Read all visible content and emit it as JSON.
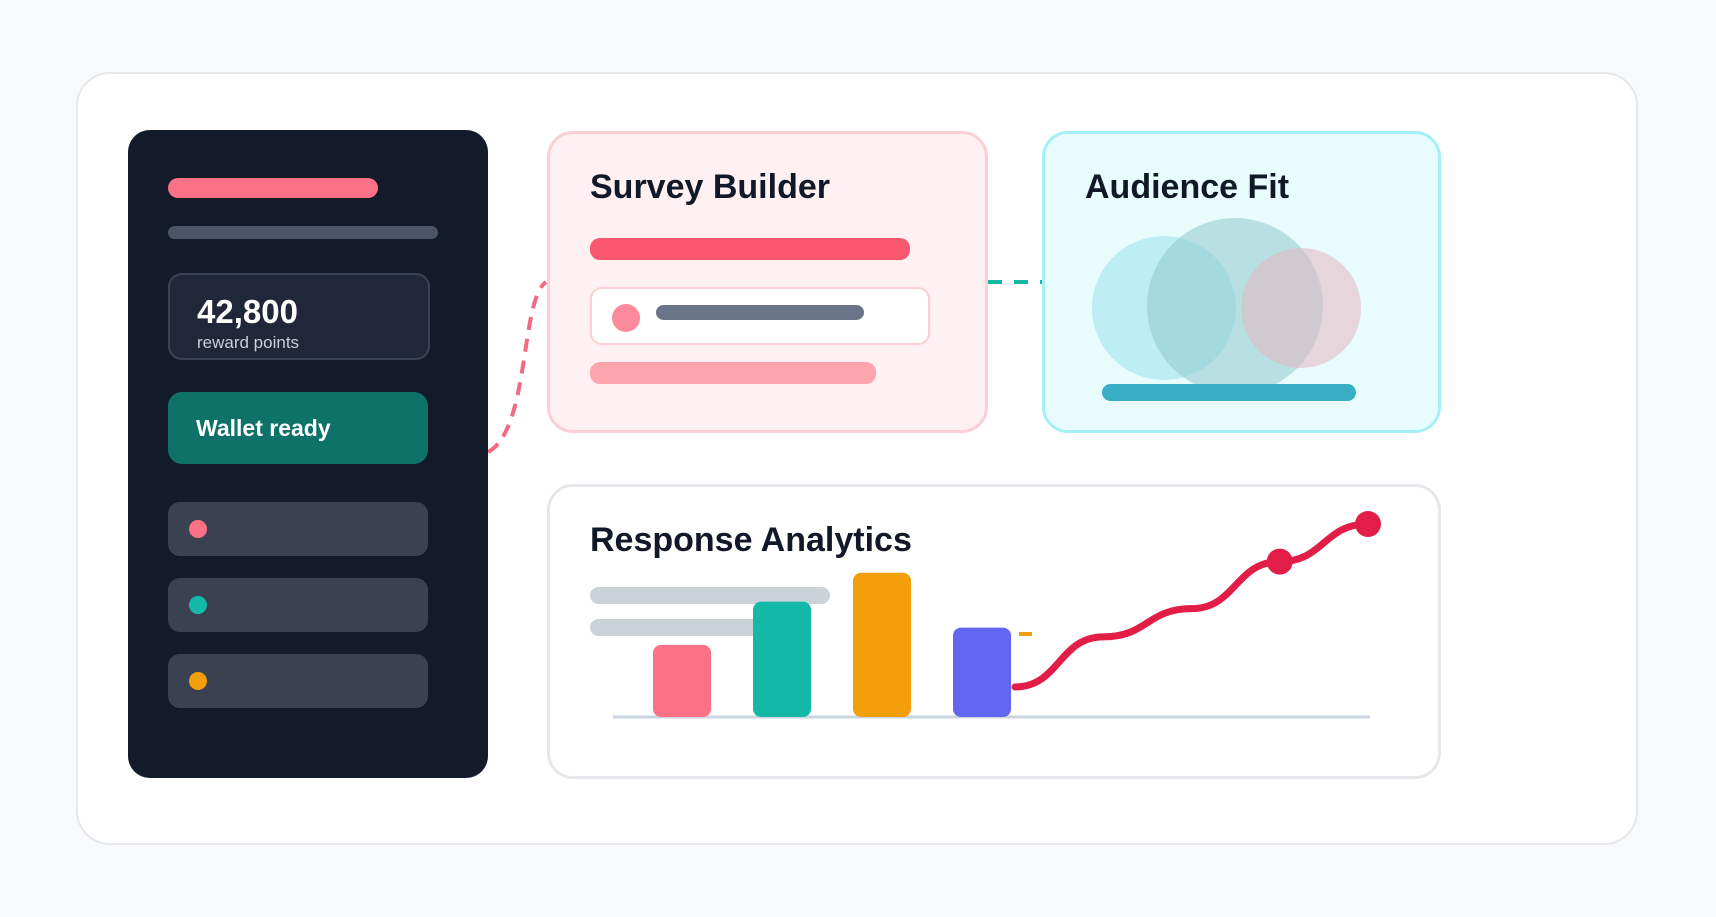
{
  "sidebar": {
    "points_value": "42,800",
    "points_label": "reward points",
    "wallet_label": "Wallet ready",
    "items": [
      {
        "dot_color": "#fb7185"
      },
      {
        "dot_color": "#14b8a6"
      },
      {
        "dot_color": "#f59e0b"
      }
    ]
  },
  "cards": {
    "survey_title": "Survey Builder",
    "audience_title": "Audience Fit",
    "analytics_title": "Response Analytics"
  },
  "colors": {
    "accent_pink": "#f9566f",
    "accent_teal": "#14b8a6",
    "accent_orange": "#f59e0b",
    "accent_indigo": "#6366f1",
    "line_red": "#e11d48",
    "sidebar_bg": "#131a29"
  },
  "chart_data": {
    "type": "bar",
    "categories": [
      "",
      "",
      "",
      ""
    ],
    "values": [
      2.5,
      4.0,
      5.0,
      3.1
    ],
    "colors": [
      "#fb7185",
      "#14b8a6",
      "#f59e0b",
      "#6366f1"
    ],
    "ylim": [
      0,
      5.2
    ],
    "trend": {
      "type": "line",
      "values": [
        0,
        1.6,
        2.5,
        4.0,
        5.2
      ],
      "highlight_points": [
        3,
        4
      ]
    }
  }
}
